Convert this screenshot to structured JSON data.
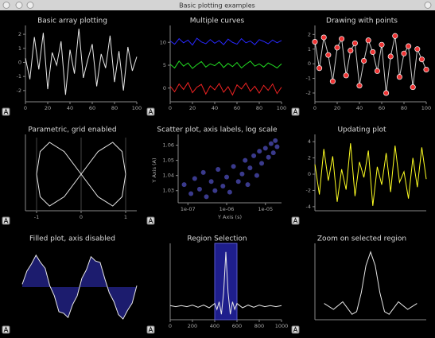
{
  "window": {
    "title": "Basic plotting examples"
  },
  "chart_data": [
    {
      "type": "line",
      "title": "Basic array plotting",
      "color": "#e8e8e8",
      "x": [
        0,
        4,
        8,
        12,
        16,
        20,
        24,
        28,
        32,
        36,
        40,
        44,
        48,
        52,
        56,
        60,
        64,
        68,
        72,
        76,
        80,
        84,
        88,
        92,
        96,
        100
      ],
      "values": [
        0.3,
        -1.2,
        1.8,
        -0.5,
        2.1,
        -1.9,
        0.7,
        -0.2,
        1.5,
        -2.3,
        0.9,
        -0.8,
        2.4,
        -1.1,
        0.2,
        1.3,
        -1.7,
        0.6,
        -0.4,
        1.9,
        -1.4,
        0.8,
        -2.0,
        1.1,
        -0.6,
        0.4
      ],
      "xlim": [
        0,
        100
      ],
      "xticks": [
        0,
        20,
        40,
        60,
        80,
        100
      ],
      "ylim": [
        -2.8,
        2.4
      ],
      "yticks": [
        -2,
        -1,
        0,
        1,
        2
      ]
    },
    {
      "type": "line",
      "title": "Multiple curves",
      "x": [
        0,
        4,
        8,
        12,
        16,
        20,
        24,
        28,
        32,
        36,
        40,
        44,
        48,
        52,
        56,
        60,
        64,
        68,
        72,
        76,
        80,
        84,
        88,
        92,
        96,
        100
      ],
      "series": [
        {
          "color": "#2828ff",
          "values": [
            10.3,
            9.6,
            10.8,
            9.9,
            10.5,
            9.4,
            10.9,
            10.1,
            9.7,
            10.6,
            9.8,
            10.4,
            9.5,
            10.7,
            10.0,
            9.6,
            10.8,
            9.9,
            10.3,
            9.5,
            10.6,
            10.2,
            9.7,
            10.5,
            9.9,
            10.4
          ]
        },
        {
          "color": "#22dd22",
          "values": [
            5.2,
            4.4,
            5.9,
            4.8,
            5.5,
            4.3,
            5.1,
            5.8,
            4.6,
            5.3,
            4.9,
            5.7,
            4.5,
            5.4,
            4.7,
            5.6,
            4.4,
            5.2,
            5.9,
            4.8,
            5.3,
            4.6,
            5.5,
            5.0,
            4.4,
            5.3
          ]
        },
        {
          "color": "#ee2222",
          "values": [
            0.4,
            -0.8,
            0.9,
            -0.3,
            1.2,
            -1.0,
            0.2,
            0.8,
            -1.3,
            0.5,
            -0.4,
            1.0,
            -0.9,
            0.3,
            -1.5,
            0.7,
            -0.2,
            1.1,
            -0.7,
            0.4,
            -1.1,
            0.6,
            -0.5,
            0.9,
            -1.2,
            0.2
          ]
        }
      ],
      "xlim": [
        0,
        100
      ],
      "xticks": [
        0,
        20,
        40,
        60,
        80,
        100
      ],
      "ylim": [
        -3,
        13
      ],
      "yticks": [
        0,
        5,
        10
      ]
    },
    {
      "type": "line",
      "title": "Drawing with points",
      "color": "#cccccc",
      "markers": true,
      "marker_color": "#ee3333",
      "x": [
        0,
        4,
        8,
        12,
        16,
        20,
        24,
        28,
        32,
        36,
        40,
        44,
        48,
        52,
        56,
        60,
        64,
        68,
        72,
        76,
        80,
        84,
        88,
        92,
        96,
        100
      ],
      "values": [
        1.5,
        -0.3,
        1.8,
        0.6,
        -1.2,
        1.1,
        1.7,
        -0.8,
        0.9,
        1.4,
        -1.5,
        0.2,
        1.6,
        0.8,
        -0.5,
        1.3,
        -2.0,
        0.5,
        1.9,
        -0.9,
        0.7,
        1.2,
        -1.6,
        1.0,
        0.3,
        -0.4
      ],
      "xlim": [
        0,
        100
      ],
      "xticks": [
        0,
        20,
        40,
        60,
        80,
        100
      ],
      "ylim": [
        -2.6,
        2.4
      ],
      "yticks": [
        -2,
        -1,
        0,
        1,
        2
      ]
    },
    {
      "type": "line",
      "title": "Parametric, grid enabled",
      "color": "#e8e8e8",
      "grid": true,
      "x": [
        1,
        0.92,
        0.71,
        0.38,
        0,
        -0.38,
        -0.71,
        -0.92,
        -1,
        -0.92,
        -0.71,
        -0.38,
        0,
        0.38,
        0.71,
        0.92,
        1
      ],
      "values": [
        0,
        0.71,
        1,
        0.71,
        0,
        -0.71,
        -1,
        -0.71,
        0,
        0.71,
        1,
        0.71,
        0,
        -0.71,
        -1,
        -0.71,
        0
      ],
      "xlim": [
        -1.25,
        1.25
      ],
      "xticks": [
        -1,
        0,
        1
      ],
      "ylim": [
        -1.15,
        1.15
      ]
    },
    {
      "type": "scatter",
      "title": "Scatter plot, axis labels, log scale",
      "color": "#6a6aff",
      "xlabel": "Y Axis (s)",
      "ylabel": "Y Axis (A)",
      "xscale": "log",
      "x": [
        8e-08,
        1.2e-07,
        1.5e-07,
        2e-07,
        2.5e-07,
        3e-07,
        4e-07,
        5e-07,
        6e-07,
        8e-07,
        1e-06,
        1.2e-06,
        1.5e-06,
        2e-06,
        2.5e-06,
        3e-06,
        3.5e-06,
        4e-06,
        5e-06,
        6e-06,
        7e-06,
        8e-06,
        1e-05,
        1.2e-05,
        1.4e-05,
        1.6e-05,
        1.8e-05,
        2e-05
      ],
      "values": [
        1.034,
        1.028,
        1.038,
        1.031,
        1.042,
        1.026,
        1.036,
        1.03,
        1.044,
        1.033,
        1.039,
        1.029,
        1.046,
        1.036,
        1.041,
        1.05,
        1.034,
        1.045,
        1.053,
        1.04,
        1.056,
        1.048,
        1.058,
        1.052,
        1.061,
        1.055,
        1.063,
        1.059
      ],
      "xlim": [
        5.6e-08,
        2.6e-05
      ],
      "xticks": [
        {
          "value": 1e-07,
          "label": "1e-07"
        },
        {
          "value": 1e-06,
          "label": "1e-06"
        },
        {
          "value": 1e-05,
          "label": "1e-05"
        }
      ],
      "ylim": [
        1.022,
        1.065
      ],
      "yticks": [
        1.03,
        1.04,
        1.05,
        1.06
      ]
    },
    {
      "type": "line",
      "title": "Updating plot",
      "color": "#ffff22",
      "x": [
        0,
        4,
        8,
        12,
        16,
        20,
        24,
        28,
        32,
        36,
        40,
        44,
        48,
        52,
        56,
        60,
        64,
        68,
        72,
        76,
        80,
        84,
        88,
        92,
        96,
        100
      ],
      "values": [
        1.2,
        -2.5,
        3.1,
        -0.8,
        2.2,
        -3.4,
        0.6,
        -1.9,
        3.8,
        -2.7,
        1.5,
        -0.4,
        2.9,
        -3.9,
        0.9,
        -1.3,
        2.6,
        -2.2,
        3.5,
        -1.0,
        0.3,
        -3.0,
        2.0,
        -1.6,
        3.3,
        -0.6
      ],
      "xlim": [
        0,
        100
      ],
      "ylim": [
        -4.5,
        4.5
      ],
      "yticks": [
        -4,
        -2,
        0,
        2,
        4
      ]
    },
    {
      "type": "area",
      "title": "Filled plot, axis disabled",
      "color": "#e8e8e8",
      "fill": "#1c1c6e",
      "axes": false,
      "x": [
        0,
        4,
        8,
        12,
        16,
        20,
        24,
        28,
        32,
        36,
        40,
        44,
        48,
        52,
        56,
        60,
        64,
        68,
        72,
        76,
        80,
        84,
        88,
        92,
        96,
        100
      ],
      "values": [
        0.1,
        0.55,
        0.8,
        1.1,
        0.85,
        0.65,
        0.05,
        -0.3,
        -0.85,
        -0.9,
        -1.05,
        -0.6,
        -0.3,
        0.3,
        0.6,
        1.05,
        0.9,
        0.85,
        0.3,
        -0.2,
        -0.5,
        -0.95,
        -1.1,
        -0.8,
        -0.55,
        0.05
      ],
      "xlim": [
        0,
        100
      ],
      "ylim": [
        -1.4,
        1.4
      ]
    },
    {
      "type": "line",
      "title": "Region Selection",
      "color": "#e8e8e8",
      "region": [
        400,
        600
      ],
      "region_color": "#1e1e8c",
      "x": [
        0,
        50,
        100,
        150,
        200,
        250,
        300,
        350,
        400,
        420,
        440,
        460,
        480,
        500,
        520,
        540,
        560,
        580,
        600,
        650,
        700,
        750,
        800,
        850,
        900,
        950,
        1000
      ],
      "values": [
        0.01,
        -0.01,
        0.01,
        -0.01,
        0.02,
        -0.02,
        0.02,
        -0.03,
        0.05,
        -0.06,
        0.08,
        -0.15,
        0.25,
        1.0,
        0.25,
        -0.15,
        0.08,
        -0.06,
        0.05,
        -0.03,
        0.02,
        -0.02,
        0.02,
        -0.01,
        0.01,
        -0.01,
        0.01
      ],
      "xlim": [
        0,
        1000
      ],
      "xticks": [
        0,
        200,
        400,
        600,
        800,
        1000
      ],
      "ylim": [
        -0.25,
        1.1
      ]
    },
    {
      "type": "line",
      "title": "Zoom on selected region",
      "color": "#e8e8e8",
      "x": [
        400,
        420,
        440,
        460,
        470,
        480,
        490,
        500,
        510,
        520,
        530,
        540,
        560,
        580,
        600
      ],
      "values": [
        0.05,
        -0.06,
        0.08,
        -0.15,
        -0.1,
        0.25,
        0.75,
        1.0,
        0.75,
        0.25,
        -0.1,
        -0.15,
        0.08,
        -0.06,
        0.05
      ],
      "xlim": [
        380,
        620
      ],
      "ylim": [
        -0.25,
        1.1
      ]
    }
  ]
}
